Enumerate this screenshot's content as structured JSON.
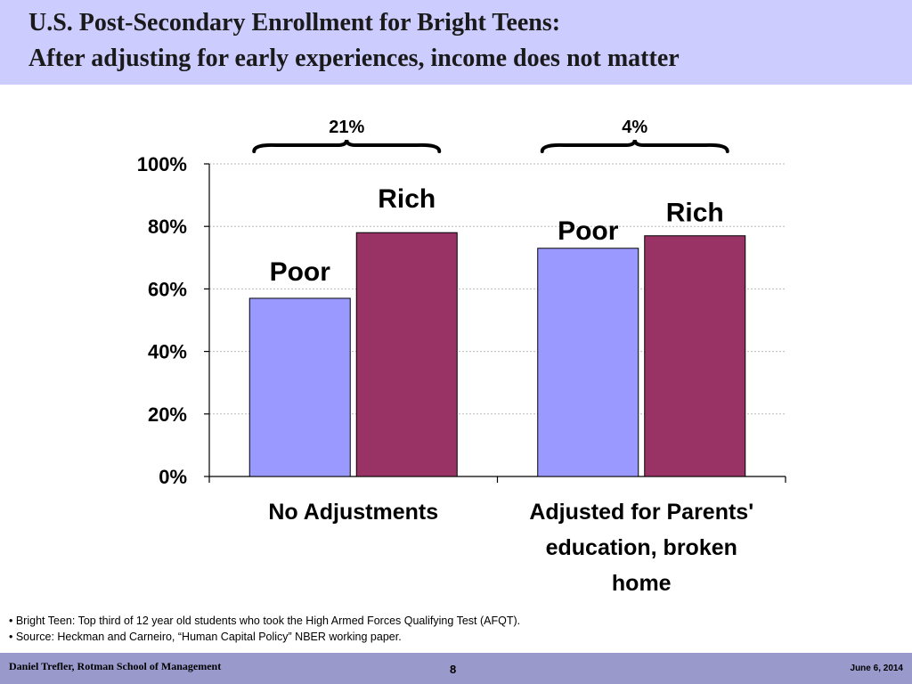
{
  "slide": {
    "title_line1": "U.S. Post-Secondary Enrollment for Bright Teens:",
    "title_line2": "After adjusting for early experiences, income does not matter",
    "notes": [
      "• Bright Teen: Top third of 12 year old students who took the High Armed Forces Qualifying Test (AFQT).",
      "• Source: Heckman and Carneiro, “Human Capital Policy” NBER working paper."
    ],
    "footer": {
      "author": "Daniel Trefler, Rotman School of Management",
      "page": "8",
      "date": "June 6, 2014"
    }
  },
  "chart_data": {
    "type": "bar",
    "categories": [
      [
        "No Adjustments"
      ],
      [
        "Adjusted for Parents'",
        "education, broken",
        "home"
      ]
    ],
    "series": [
      {
        "name": "Poor",
        "values": [
          57,
          73
        ],
        "color": "#9999ff"
      },
      {
        "name": "Rich",
        "values": [
          78,
          77
        ],
        "color": "#993366"
      }
    ],
    "ylim": [
      0,
      100
    ],
    "yticks": [
      0,
      20,
      40,
      60,
      80,
      100
    ],
    "tick_suffix": "%",
    "gap_labels": [
      "21%",
      "4%"
    ],
    "grid": true,
    "gridline_color": "#bbbbbb"
  }
}
